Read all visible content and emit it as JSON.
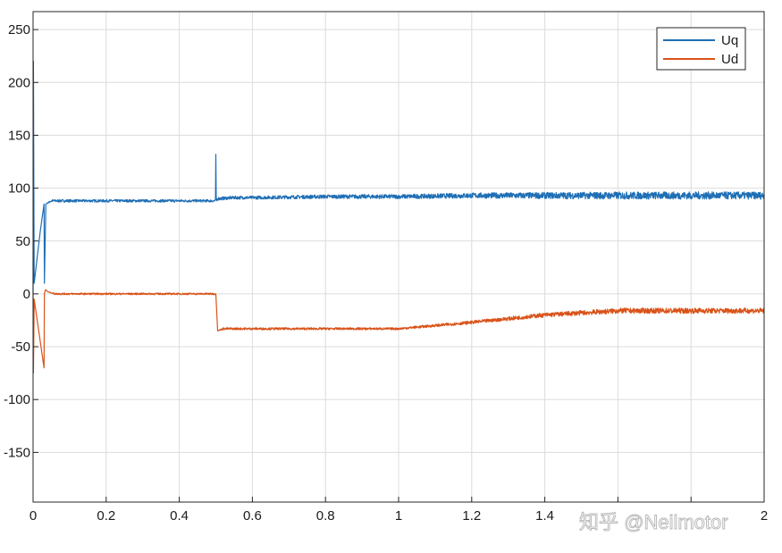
{
  "chart_data": {
    "type": "line",
    "xlim": [
      0,
      2
    ],
    "ylim": [
      -197,
      267
    ],
    "x_ticks": [
      0,
      0.2,
      0.4,
      0.6,
      0.8,
      1,
      1.2,
      1.4,
      1.6,
      1.8,
      2
    ],
    "x_tick_labels": [
      "0",
      "0.2",
      "0.4",
      "0.6",
      "0.8",
      "1",
      "1.2",
      "1.4",
      "",
      "",
      "2"
    ],
    "y_ticks": [
      250,
      200,
      150,
      100,
      50,
      0,
      -50,
      -100,
      -150
    ],
    "y_tick_labels": [
      "250",
      "200",
      "150",
      "100",
      "50",
      "0",
      "-50",
      "-100",
      "-150"
    ],
    "grid": true,
    "legend_position": "top-right",
    "series": [
      {
        "name": "Uq",
        "color": "#1f6fb5",
        "x": [
          0,
          0.001,
          0.003,
          0.02,
          0.03,
          0.031,
          0.035,
          0.05,
          0.1,
          0.2,
          0.3,
          0.4,
          0.499,
          0.5,
          0.501,
          0.502,
          0.505,
          0.55,
          0.6,
          0.8,
          1.0,
          1.2,
          1.4,
          1.6,
          1.8,
          2.0
        ],
        "y": [
          0,
          220,
          10,
          60,
          85,
          10,
          85,
          88,
          88,
          88,
          88,
          88,
          88,
          132,
          92,
          88,
          90,
          91,
          91,
          92,
          92,
          93,
          93,
          93,
          93,
          93
        ],
        "noise": [
          0,
          0,
          0,
          0,
          0,
          0,
          0,
          1.2,
          1.2,
          1.2,
          1.2,
          1.2,
          1.2,
          0,
          0,
          0,
          1.5,
          1.5,
          1.5,
          1.8,
          2,
          2.5,
          3,
          3.5,
          3.5,
          3.5
        ]
      },
      {
        "name": "Ud",
        "color": "#d95319",
        "x": [
          0,
          0.001,
          0.003,
          0.03,
          0.031,
          0.034,
          0.04,
          0.06,
          0.1,
          0.2,
          0.3,
          0.4,
          0.499,
          0.5,
          0.505,
          0.52,
          0.6,
          0.8,
          1.0,
          1.2,
          1.4,
          1.6,
          1.8,
          2.0
        ],
        "y": [
          0,
          -75,
          -5,
          -70,
          0,
          4,
          2,
          0,
          0,
          0,
          0,
          0,
          0,
          0,
          -35,
          -33,
          -33,
          -33,
          -33,
          -27,
          -20,
          -16,
          -16,
          -16
        ],
        "noise": [
          0,
          0,
          0,
          0,
          0,
          0,
          0,
          0.8,
          0.8,
          0.8,
          0.8,
          0.8,
          0.8,
          0,
          0,
          1,
          1,
          1,
          1,
          1.5,
          2,
          2.5,
          2.5,
          2.5
        ]
      }
    ]
  },
  "watermark": "知乎 @Neilmotor"
}
